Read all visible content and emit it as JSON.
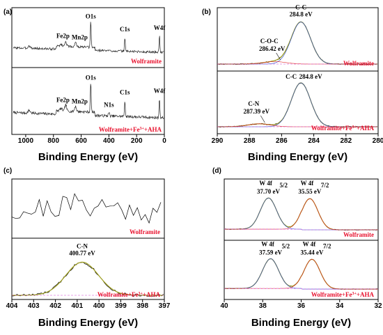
{
  "chart_data": [
    {
      "panel": "(a)",
      "type": "line",
      "xlabel": "Binding Energy (eV)",
      "xlim": [
        1100,
        0
      ],
      "xticks": [
        1000,
        800,
        600,
        400,
        200,
        0
      ],
      "subplots": [
        {
          "name": "Wolframite",
          "peaks": [
            {
              "label": "Fe2p",
              "x": 711
            },
            {
              "label": "Mn2p",
              "x": 641
            },
            {
              "label": "O1s",
              "x": 531
            },
            {
              "label": "C1s",
              "x": 284.8
            },
            {
              "label": "W4f",
              "x": 35
            }
          ]
        },
        {
          "name": "Wolframite+Fe³⁺+AHA",
          "name_parts": [
            "Wolframite+Fe",
            "3+",
            "+AHA"
          ],
          "peaks": [
            {
              "label": "Fe2p",
              "x": 711
            },
            {
              "label": "Mn2p",
              "x": 641
            },
            {
              "label": "O1s",
              "x": 531
            },
            {
              "label": "N1s",
              "x": 400
            },
            {
              "label": "C1s",
              "x": 284.8
            },
            {
              "label": "W4f",
              "x": 35
            }
          ]
        }
      ]
    },
    {
      "panel": "(b)",
      "type": "line",
      "xlabel": "Binding Energy (eV)",
      "xlim": [
        290,
        280
      ],
      "xticks": [
        290,
        288,
        286,
        284,
        282,
        280
      ],
      "subplots": [
        {
          "name": "Wolframite",
          "peaks": [
            {
              "label": "C-C",
              "value_label": "284.8 eV",
              "x": 284.8,
              "height": 0.85
            },
            {
              "label": "C-O-C",
              "value_label": "286.42 eV",
              "x": 286.42,
              "height": 0.05
            }
          ]
        },
        {
          "name": "Wolframite+Fe³⁺+AHA",
          "name_parts": [
            "Wolframite+Fe",
            "3+",
            "+AHA"
          ],
          "peaks": [
            {
              "label": "C-C",
              "value_label": "284.8 eV",
              "x": 284.8,
              "height": 0.9
            },
            {
              "label": "C-N",
              "value_label": "287.39 eV",
              "x": 287.39,
              "height": 0.06
            }
          ]
        }
      ]
    },
    {
      "panel": "(c)",
      "type": "line",
      "xlabel": "Binding Energy (eV)",
      "xlim": [
        404,
        397
      ],
      "xticks": [
        404,
        403,
        402,
        401,
        400,
        399,
        398,
        397
      ],
      "subplots": [
        {
          "name": "Wolframite",
          "peaks": []
        },
        {
          "name": "Wolframite+Fe³⁺+AHA",
          "name_parts": [
            "Wolframite+Fe",
            "3+",
            "+AHA"
          ],
          "peaks": [
            {
              "label": "C-N",
              "value_label": "400.77 eV",
              "x": 400.77,
              "height": 0.7
            }
          ]
        }
      ]
    },
    {
      "panel": "(d)",
      "type": "line",
      "xlabel": "Binding Energy (eV)",
      "xlim": [
        40,
        32
      ],
      "xticks": [
        40,
        38,
        36,
        34,
        32
      ],
      "subplots": [
        {
          "name": "Wolframite",
          "peaks": [
            {
              "label": "W 4f",
              "sub": "5/2",
              "value_label": "37.70 eV",
              "x": 37.7,
              "height": 0.7
            },
            {
              "label": "W 4f",
              "sub": "7/2",
              "value_label": "35.55 eV",
              "x": 35.55,
              "height": 0.7
            }
          ]
        },
        {
          "name": "Wolframite+Fe³⁺+AHA",
          "name_parts": [
            "Wolframite+Fe",
            "3+",
            "+AHA"
          ],
          "peaks": [
            {
              "label": "W 4f",
              "sub": "5/2",
              "value_label": "37.59 eV",
              "x": 37.59,
              "height": 0.7
            },
            {
              "label": "W 4f",
              "sub": "7/2",
              "value_label": "35.44 eV",
              "x": 35.44,
              "height": 0.7
            }
          ]
        }
      ]
    }
  ]
}
